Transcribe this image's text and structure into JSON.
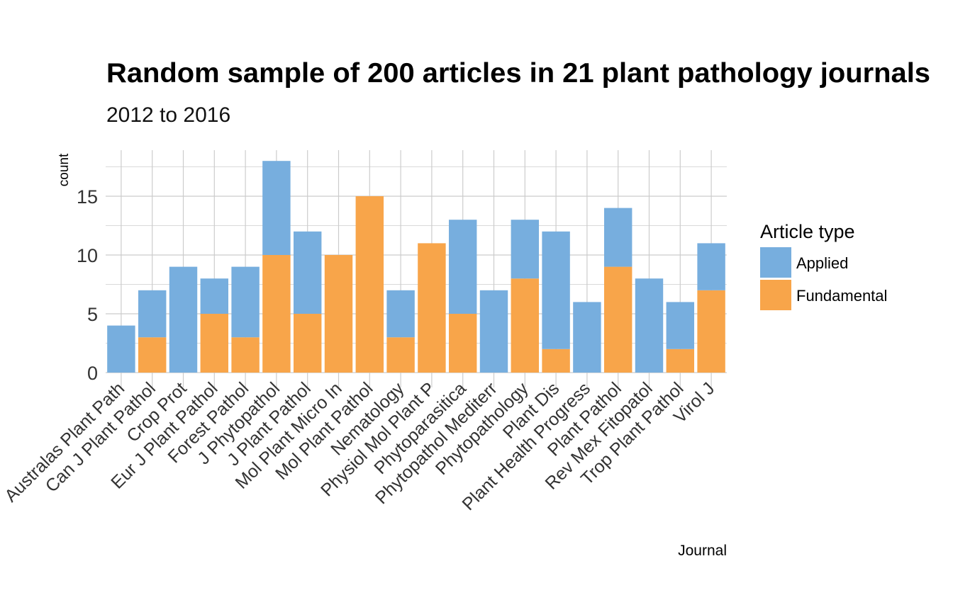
{
  "chart_data": {
    "type": "bar",
    "stacked": true,
    "title": "Random sample of 200 articles in 21 plant pathology journals",
    "subtitle": "2012 to 2016",
    "xlabel": "Journal",
    "ylabel": "count",
    "ylim": [
      0,
      18.9
    ],
    "yticks": [
      0,
      5,
      10,
      15
    ],
    "grid": true,
    "legend": {
      "title": "Article type",
      "position": "right"
    },
    "categories": [
      "Australas Plant Path",
      "Can J Plant Pathol",
      "Crop Prot",
      "Eur J Plant Pathol",
      "Forest Pathol",
      "J Phytopathol",
      "J Plant Pathol",
      "Mol Plant Micro In",
      "Mol Plant Pathol",
      "Nematology",
      "Physiol Mol Plant P",
      "Phytoparasitica",
      "Phytopathol Mediterr",
      "Phytopathology",
      "Plant Dis",
      "Plant Health Progress",
      "Plant Pathol",
      "Rev Mex Fitopatol",
      "Trop Plant Pathol",
      "Virol J"
    ],
    "series": [
      {
        "name": "Fundamental",
        "color": "#F8A54A",
        "values": [
          0,
          3,
          0,
          5,
          3,
          10,
          5,
          10,
          15,
          3,
          11,
          5,
          0,
          8,
          2,
          0,
          9,
          0,
          2,
          7
        ]
      },
      {
        "name": "Applied",
        "color": "#77AEDE",
        "values": [
          4,
          4,
          9,
          3,
          6,
          8,
          7,
          0,
          0,
          4,
          0,
          8,
          7,
          5,
          10,
          6,
          5,
          8,
          4,
          4
        ]
      }
    ],
    "legend_order": [
      "Applied",
      "Fundamental"
    ]
  }
}
